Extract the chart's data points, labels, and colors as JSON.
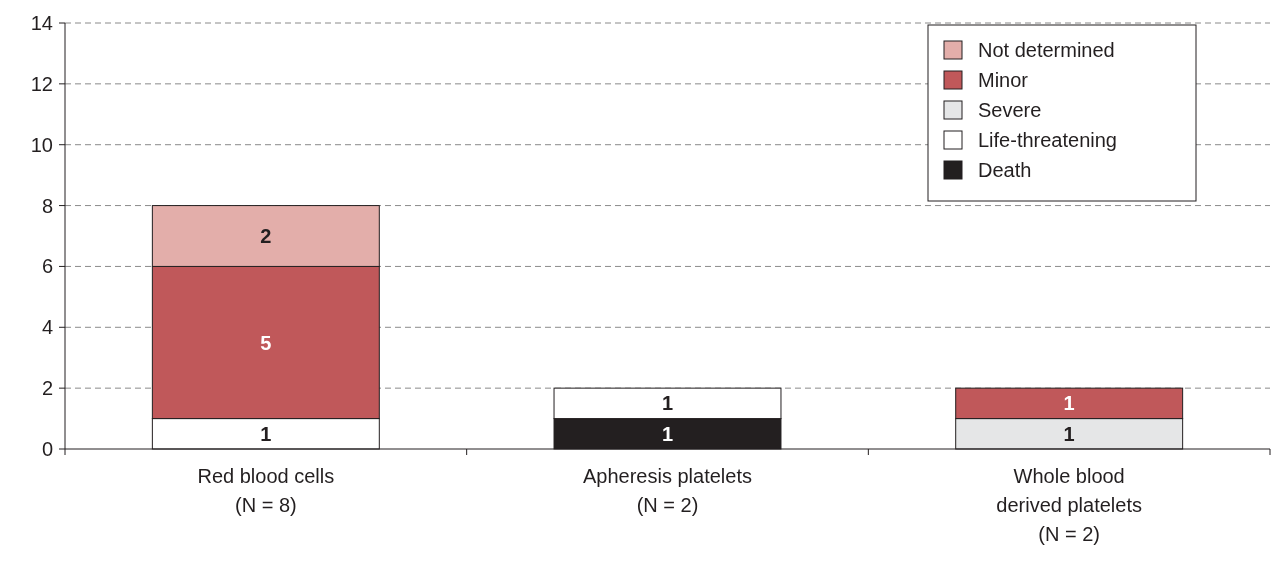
{
  "chart_data": {
    "type": "bar",
    "stacked": true,
    "categories": [
      "Red blood cells\n(N = 8)",
      "Apheresis platelets\n(N = 2)",
      "Whole blood\nderived platelets\n(N = 2)"
    ],
    "series": [
      {
        "name": "Death",
        "color": "#231f20",
        "values": [
          null,
          1,
          null
        ]
      },
      {
        "name": "Life-threatening",
        "color": "#ffffff",
        "values": [
          1,
          1,
          null
        ]
      },
      {
        "name": "Severe",
        "color": "#e5e6e7",
        "values": [
          null,
          null,
          1
        ]
      },
      {
        "name": "Minor",
        "color": "#c0585a",
        "values": [
          5,
          null,
          1
        ]
      },
      {
        "name": "Not determined",
        "color": "#e3aeaa",
        "values": [
          2,
          null,
          null
        ]
      }
    ],
    "ylim": [
      0,
      14
    ],
    "yticks": [
      0,
      2,
      4,
      6,
      8,
      10,
      12,
      14
    ],
    "grid": "y",
    "legend": "top right",
    "data_labels": true
  }
}
